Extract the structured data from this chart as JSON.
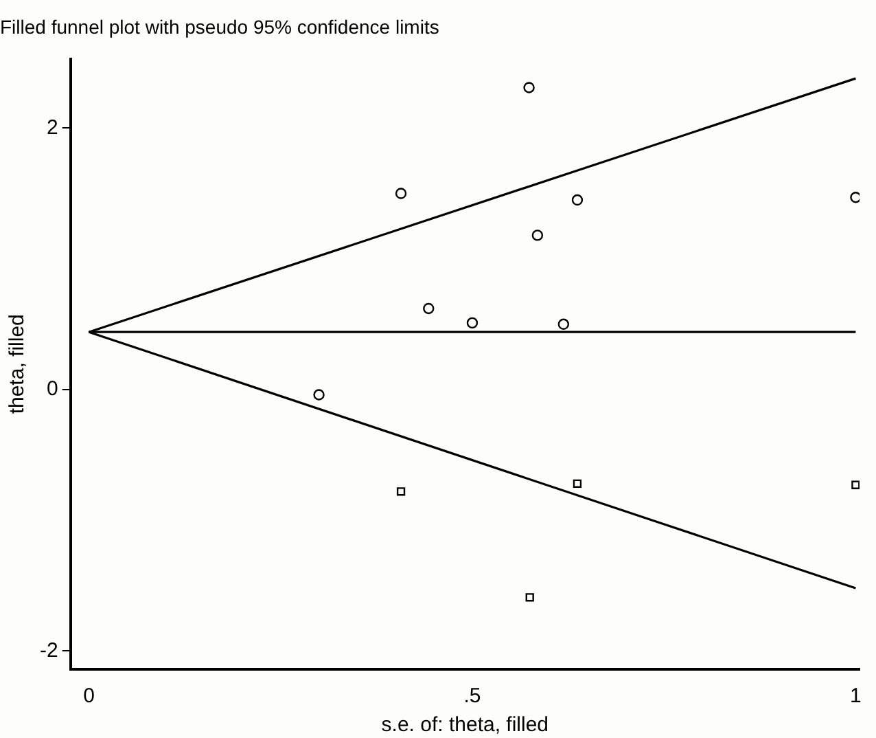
{
  "chart_data": {
    "type": "scatter",
    "title": "Filled funnel plot with pseudo 95% confidence limits",
    "xlabel": "s.e. of: theta, filled",
    "ylabel": "theta, filled",
    "xlim": [
      -0.024,
      1.005
    ],
    "ylim": [
      -2.14,
      2.53
    ],
    "xticks": [
      0,
      {
        "value": 0.5,
        "label": ".5"
      },
      1
    ],
    "yticks": [
      -2,
      0,
      2
    ],
    "grid": false,
    "legend": false,
    "series": [
      {
        "type": "scatter",
        "marker": "circle",
        "color": "#000000",
        "x": [
          0.574,
          0.407,
          0.637,
          1.0,
          0.585,
          0.443,
          0.5,
          0.619,
          0.3
        ],
        "values": [
          2.31,
          1.5,
          1.45,
          1.47,
          1.18,
          0.62,
          0.51,
          0.5,
          -0.04
        ]
      },
      {
        "type": "scatter",
        "marker": "square",
        "color": "#000000",
        "x": [
          0.407,
          0.637,
          0.575,
          1.0
        ],
        "values": [
          -0.78,
          -0.72,
          -1.59,
          -0.73
        ]
      },
      {
        "type": "line",
        "marker": "none",
        "line_style": "solid",
        "color": "#000000",
        "x": [
          0,
          1
        ],
        "values": [
          0.44,
          0.44
        ]
      },
      {
        "type": "line",
        "marker": "none",
        "line_style": "solid",
        "color": "#000000",
        "x": [
          0,
          1
        ],
        "values": [
          0.44,
          2.38
        ]
      },
      {
        "type": "line",
        "marker": "none",
        "line_style": "solid",
        "color": "#000000",
        "x": [
          0,
          1
        ],
        "values": [
          0.44,
          -1.52
        ]
      }
    ]
  }
}
